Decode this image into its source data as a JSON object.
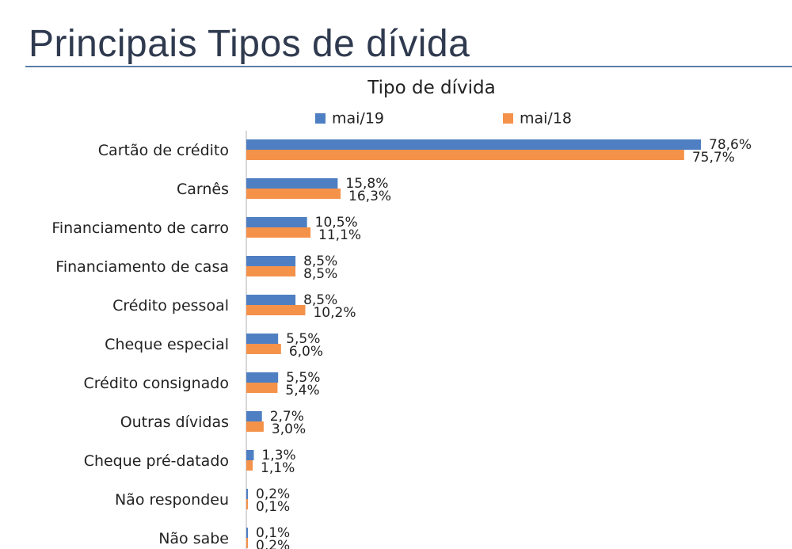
{
  "header": {
    "title": "Principais Tipos de dívida"
  },
  "colors": {
    "series_1": "#4e7fc2",
    "series_2": "#f5924a",
    "axis": "#b0b0b0"
  },
  "chart_data": {
    "type": "bar",
    "orientation": "horizontal",
    "title": "Tipo de dívida",
    "legend_position": "top",
    "categories": [
      "Cartão de crédito",
      "Carnês",
      "Financiamento de carro",
      "Financiamento de casa",
      "Crédito pessoal",
      "Cheque especial",
      "Crédito consignado",
      "Outras dívidas",
      "Cheque pré-datado",
      "Não respondeu",
      "Não sabe"
    ],
    "series": [
      {
        "name": "mai/19",
        "values": [
          78.6,
          15.8,
          10.5,
          8.5,
          8.5,
          5.5,
          5.5,
          2.7,
          1.3,
          0.2,
          0.1
        ],
        "labels": [
          "78,6%",
          "15,8%",
          "10,5%",
          "8,5%",
          "8,5%",
          "5,5%",
          "5,5%",
          "2,7%",
          "1,3%",
          "0,2%",
          "0,1%"
        ]
      },
      {
        "name": "mai/18",
        "values": [
          75.7,
          16.3,
          11.1,
          8.5,
          10.2,
          6.0,
          5.4,
          3.0,
          1.1,
          0.1,
          0.2
        ],
        "labels": [
          "75,7%",
          "16,3%",
          "11,1%",
          "8,5%",
          "10,2%",
          "6,0%",
          "5,4%",
          "3,0%",
          "1,1%",
          "0,1%",
          "0,2%"
        ]
      }
    ],
    "xlim": [
      0,
      80
    ],
    "grid": false
  }
}
